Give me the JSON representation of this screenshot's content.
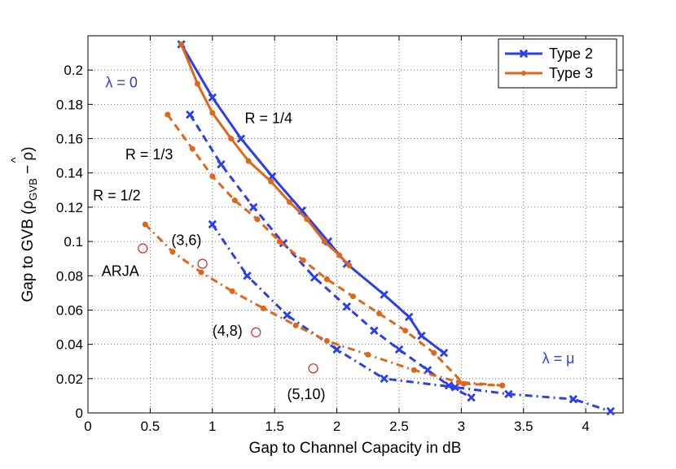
{
  "chart_data": {
    "type": "line",
    "title": "",
    "xlabel": "Gap to Channel Capacity in dB",
    "ylabel": {
      "main": "Gap to GVB (ρ",
      "sub": "GVB",
      "rest": " − ρ)",
      "hat": "^"
    },
    "xlim": [
      0,
      4.3
    ],
    "ylim": [
      0,
      0.22
    ],
    "xticks": [
      0,
      0.5,
      1,
      1.5,
      2,
      2.5,
      3,
      3.5,
      4
    ],
    "xtick_labels": [
      "0",
      "0.5",
      "1",
      "1.5",
      "2",
      "2.5",
      "3",
      "3.5",
      "4"
    ],
    "yticks": [
      0,
      0.02,
      0.04,
      0.06,
      0.08,
      0.1,
      0.12,
      0.14,
      0.16,
      0.18,
      0.2
    ],
    "ytick_labels": [
      "0",
      "0.02",
      "0.04",
      "0.06",
      "0.08",
      "0.1",
      "0.12",
      "0.14",
      "0.16",
      "0.18",
      "0.2"
    ],
    "grid": true,
    "legend_position": "top-right",
    "legend": [
      {
        "label": "Type 2",
        "color": "#2a3ef0",
        "marker": "x"
      },
      {
        "label": "Type 3",
        "color": "#e0661a",
        "marker": "dot"
      }
    ],
    "series": [
      {
        "type": "Type 2",
        "group": "R = 1/4",
        "style": "solid",
        "color": "#2a3ef0",
        "marker": "x",
        "x": [
          0.75,
          1.0,
          1.23,
          1.48,
          1.72,
          1.93,
          2.08,
          2.38,
          2.58,
          2.68,
          2.86
        ],
        "y": [
          0.215,
          0.184,
          0.16,
          0.138,
          0.118,
          0.1,
          0.087,
          0.069,
          0.056,
          0.045,
          0.035
        ]
      },
      {
        "type": "Type 3",
        "group": "R = 1/4",
        "style": "solid",
        "color": "#e0661a",
        "marker": "dot",
        "x": [
          0.75,
          0.88,
          1.0,
          1.15,
          1.29,
          1.47,
          1.62,
          1.76,
          1.9,
          2.02,
          2.1
        ],
        "y": [
          0.215,
          0.192,
          0.175,
          0.16,
          0.147,
          0.135,
          0.123,
          0.113,
          0.1,
          0.092,
          0.086
        ]
      },
      {
        "type": "Type 2",
        "group": "R = 1/3",
        "style": "dashed",
        "color": "#2a3ef0",
        "marker": "x",
        "x": [
          0.82,
          1.07,
          1.33,
          1.57,
          1.82,
          2.08,
          2.3,
          2.5,
          2.73,
          2.9,
          3.08
        ],
        "y": [
          0.174,
          0.145,
          0.12,
          0.099,
          0.079,
          0.062,
          0.048,
          0.037,
          0.025,
          0.016,
          0.009
        ]
      },
      {
        "type": "Type 3",
        "group": "R = 1/3",
        "style": "dashed",
        "color": "#e0661a",
        "marker": "dot",
        "x": [
          0.64,
          0.84,
          1.0,
          1.18,
          1.36,
          1.54,
          1.73,
          1.92,
          2.13,
          2.34,
          2.55,
          2.78,
          3.02,
          3.33
        ],
        "y": [
          0.174,
          0.154,
          0.138,
          0.124,
          0.113,
          0.1,
          0.089,
          0.078,
          0.068,
          0.058,
          0.048,
          0.035,
          0.017,
          0.016
        ]
      },
      {
        "type": "Type 2",
        "group": "R = 1/2",
        "style": "dashdot",
        "color": "#2a3ef0",
        "marker": "x",
        "x": [
          1.0,
          1.28,
          1.6,
          2.0,
          2.38,
          2.95,
          3.38,
          3.9,
          4.2
        ],
        "y": [
          0.11,
          0.08,
          0.057,
          0.037,
          0.02,
          0.015,
          0.011,
          0.008,
          0.001
        ]
      },
      {
        "type": "Type 3",
        "group": "R = 1/2",
        "style": "dashdot",
        "color": "#e0661a",
        "marker": "dot",
        "x": [
          0.46,
          0.68,
          0.91,
          1.16,
          1.41,
          1.67,
          1.92,
          2.25,
          2.62,
          2.98,
          3.33
        ],
        "y": [
          0.11,
          0.094,
          0.082,
          0.071,
          0.061,
          0.051,
          0.042,
          0.034,
          0.025,
          0.018,
          0.016
        ]
      },
      {
        "type": "ARJA",
        "style": "circles",
        "color": "#e02020",
        "marker": "circle",
        "x": [
          0.44,
          0.92,
          1.35,
          1.81
        ],
        "y": [
          0.096,
          0.087,
          0.047,
          0.026
        ]
      }
    ],
    "annotations": [
      {
        "text": "λ = 0",
        "x": 0.14,
        "y": 0.19,
        "color": "#2a3ef0"
      },
      {
        "text": "λ = μ",
        "x": 3.65,
        "y": 0.029,
        "color": "#2a3ef0"
      },
      {
        "text": "R = 1/4",
        "x": 1.26,
        "y": 0.169,
        "color": "#000000"
      },
      {
        "text": "R = 1/3",
        "x": 0.3,
        "y": 0.148,
        "color": "#000000"
      },
      {
        "text": "R = 1/2",
        "x": 0.04,
        "y": 0.124,
        "color": "#000000"
      },
      {
        "text": "(3,6)",
        "x": 0.67,
        "y": 0.098,
        "color": "#000000"
      },
      {
        "text": "ARJA",
        "x": 0.11,
        "y": 0.08,
        "color": "#000000"
      },
      {
        "text": "(4,8)",
        "x": 1.0,
        "y": 0.045,
        "color": "#000000"
      },
      {
        "text": "(5,10)",
        "x": 1.6,
        "y": 0.008,
        "color": "#000000"
      }
    ]
  }
}
